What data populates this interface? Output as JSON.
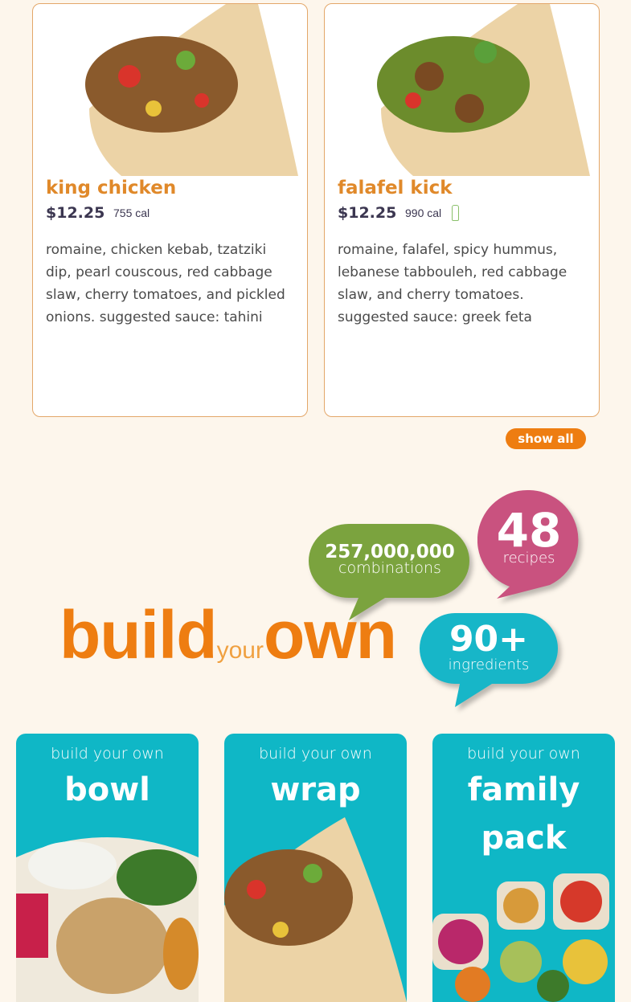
{
  "menu_items": [
    {
      "name": "king chicken",
      "price": "$12.25",
      "calories": "755 cal",
      "vegetarian": false,
      "description": "romaine, chicken kebab, tzatziki dip, pearl couscous, red cabbage slaw, cherry tomatoes, and pickled onions. suggested sauce: tahini"
    },
    {
      "name": "falafel kick",
      "price": "$12.25",
      "calories": "990 cal",
      "vegetarian": true,
      "description": "romaine, falafel, spicy hummus, lebanese tabbouleh, red cabbage slaw, and cherry tomatoes. suggested sauce: greek feta"
    }
  ],
  "show_all_label": "show all",
  "build": {
    "word1": "build",
    "word2": "your",
    "word3": "own"
  },
  "stats": [
    {
      "value": "257,000,000",
      "label": "combinations",
      "color": "#7ba33e"
    },
    {
      "value": "48",
      "label": "recipes",
      "color": "#c9527f"
    },
    {
      "value": "90+",
      "label": "ingredients",
      "color": "#17b6c8"
    }
  ],
  "options": [
    {
      "subtitle": "build your own",
      "name": "bowl"
    },
    {
      "subtitle": "build your own",
      "name": "wrap"
    },
    {
      "subtitle": "build your own",
      "name": "family pack"
    }
  ],
  "colors": {
    "accent": "#ee7d11",
    "tile": "#0fb7c6",
    "background": "#fdf6ec"
  }
}
